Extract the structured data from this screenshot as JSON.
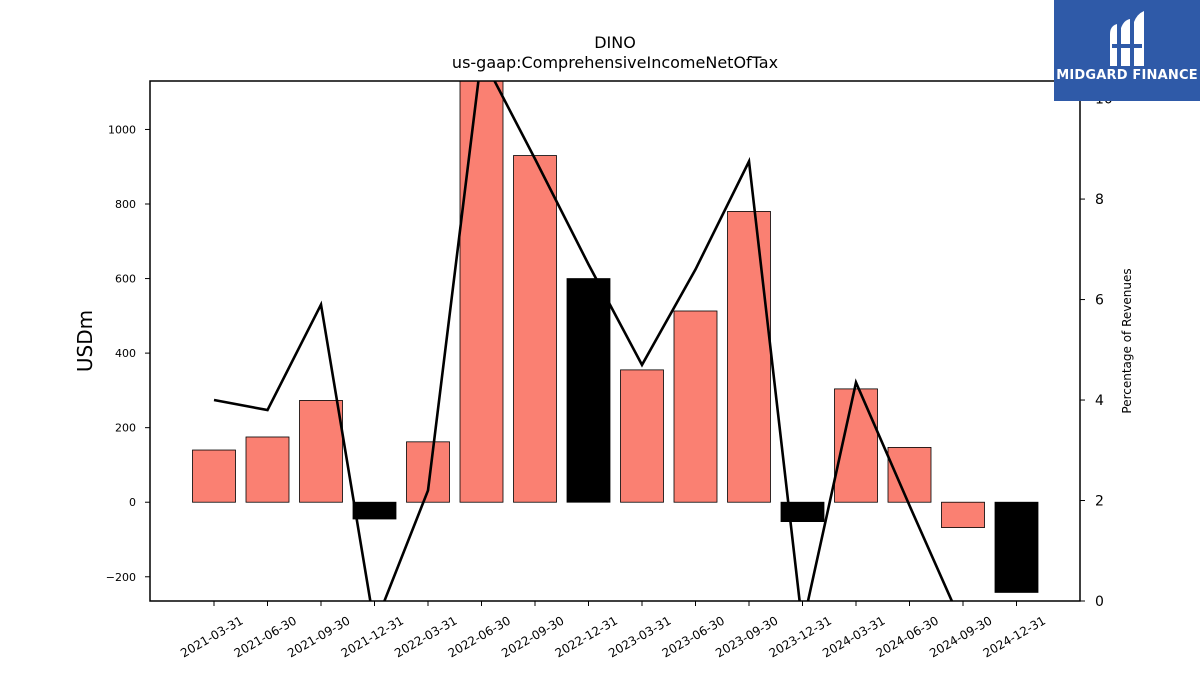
{
  "chart_data": {
    "type": "bar",
    "title": "DINO",
    "subtitle": "us-gaap:ComprehensiveIncomeNetOfTax",
    "ylabel": "USDm",
    "y2label": "Percentage of Revenues",
    "ylim": [
      -265,
      1130
    ],
    "y2lim": [
      0,
      10.35
    ],
    "yticks": [
      -200,
      0,
      200,
      400,
      600,
      800,
      1000
    ],
    "y2ticks": [
      0,
      2,
      4,
      6,
      8,
      10
    ],
    "categories": [
      "2021-03-31",
      "2021-06-30",
      "2021-09-30",
      "2021-12-31",
      "2022-03-31",
      "2022-06-30",
      "2022-09-30",
      "2022-12-31",
      "2023-03-31",
      "2023-06-30",
      "2023-09-30",
      "2023-12-31",
      "2024-03-31",
      "2024-06-30",
      "2024-09-30",
      "2024-12-31"
    ],
    "series": [
      {
        "type": "bar",
        "values": [
          140,
          175,
          273,
          -45,
          162,
          1135,
          930,
          600,
          355,
          513,
          780,
          -52,
          304,
          147,
          -68,
          -242
        ]
      },
      {
        "type": "line",
        "axis": "right",
        "values": [
          4.0,
          3.8,
          5.9,
          -0.5,
          2.2,
          10.85,
          8.8,
          6.7,
          4.7,
          6.6,
          8.75,
          -0.5,
          4.35,
          1.9,
          -0.5,
          null
        ]
      }
    ],
    "bar_colors": [
      "#fa8072",
      "#fa8072",
      "#fa8072",
      "#000000",
      "#fa8072",
      "#fa8072",
      "#fa8072",
      "#000000",
      "#fa8072",
      "#fa8072",
      "#fa8072",
      "#000000",
      "#fa8072",
      "#fa8072",
      "#fa8072",
      "#000000"
    ],
    "line_color": "#000000",
    "grid": false
  },
  "logo": {
    "text": "MIDGARD FINANCE",
    "icon": "midgard-logo-icon",
    "background": "#2f5aa8"
  }
}
